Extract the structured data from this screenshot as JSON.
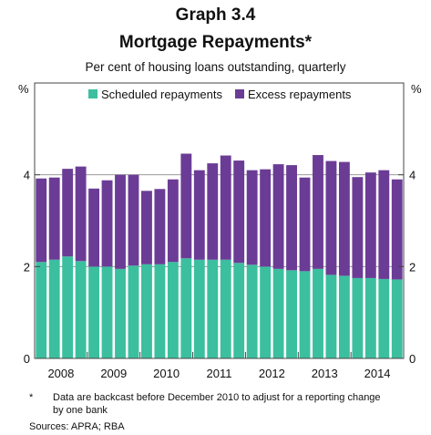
{
  "header": {
    "graph_number": "Graph 3.4",
    "title": "Mortgage Repayments*",
    "subtitle": "Per cent of housing loans outstanding, quarterly"
  },
  "axes": {
    "left_unit": "%",
    "right_unit": "%"
  },
  "footnote": {
    "marker": "*",
    "text": "Data are backcast before December 2010 to adjust for a reporting change by one bank"
  },
  "sources": "Sources:  APRA; RBA",
  "colors": {
    "scheduled": "#3bbf9f",
    "excess": "#6b3c96",
    "grid": "#9a9a9a",
    "frame": "#444444"
  },
  "chart_data": {
    "type": "bar",
    "stacked": true,
    "ylim": [
      0,
      6
    ],
    "yticks": [
      0,
      2,
      4
    ],
    "grid": true,
    "legend_position": "top",
    "year_labels": [
      "2008",
      "2009",
      "2010",
      "2011",
      "2012",
      "2013",
      "2014"
    ],
    "series": [
      {
        "name": "Scheduled repayments",
        "values": [
          2.1,
          2.15,
          2.22,
          2.12,
          2.0,
          2.0,
          1.95,
          2.02,
          2.05,
          2.05,
          2.1,
          2.18,
          2.15,
          2.15,
          2.15,
          2.08,
          2.04,
          2.0,
          1.95,
          1.92,
          1.9,
          1.95,
          1.82,
          1.8,
          1.75,
          1.75,
          1.73,
          1.72
        ]
      },
      {
        "name": "Excess repayments",
        "values": [
          1.82,
          1.79,
          1.91,
          2.06,
          1.7,
          1.88,
          2.05,
          1.98,
          1.6,
          1.64,
          1.8,
          2.28,
          1.95,
          2.1,
          2.27,
          2.23,
          2.06,
          2.12,
          2.28,
          2.29,
          2.04,
          2.48,
          2.48,
          2.48,
          2.2,
          2.3,
          2.37,
          2.18
        ]
      }
    ]
  }
}
